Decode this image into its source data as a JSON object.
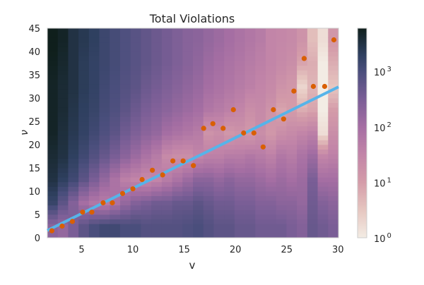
{
  "chart_data": {
    "type": "heatmap",
    "title": "Total Violations",
    "xlabel": "v",
    "ylabel": "ν",
    "xlim": [
      1.66,
      30.05
    ],
    "ylim": [
      0,
      45
    ],
    "xticks": [
      5,
      10,
      15,
      20,
      25,
      30
    ],
    "yticks": [
      0,
      5,
      10,
      15,
      20,
      25,
      30,
      35,
      40,
      45
    ],
    "grid": false,
    "colorbar": {
      "scale": "log",
      "range": [
        1,
        6000
      ],
      "tick_labels": [
        {
          "base": "10",
          "exp": "0",
          "value": 1
        },
        {
          "base": "10",
          "exp": "1",
          "value": 10
        },
        {
          "base": "10",
          "exp": "2",
          "value": 100
        },
        {
          "base": "10",
          "exp": "3",
          "value": 1000
        }
      ],
      "colormap_stops": [
        {
          "log10": 0,
          "color": "#f3ece4"
        },
        {
          "log10": 0.5,
          "color": "#e6c6c0"
        },
        {
          "log10": 1,
          "color": "#d49ca9"
        },
        {
          "log10": 1.5,
          "color": "#c285a8"
        },
        {
          "log10": 2,
          "color": "#a56ea3"
        },
        {
          "log10": 2.5,
          "color": "#7a5e96"
        },
        {
          "log10": 3,
          "color": "#4a4e7c"
        },
        {
          "log10": 3.3,
          "color": "#2f4060"
        },
        {
          "log10": 3.78,
          "color": "#0f1f1c"
        }
      ]
    },
    "heatmap": {
      "columns_v": [
        2,
        3,
        4,
        5,
        6,
        7,
        8,
        9,
        10,
        11,
        12,
        13,
        14,
        15,
        16,
        17,
        18,
        19,
        20,
        21,
        22,
        23,
        24,
        25,
        26,
        27,
        28,
        29
      ],
      "row_band_centers_nu": [
        2.5,
        7.5,
        12.5,
        17.5,
        22.5,
        27.5,
        32.5,
        37.5,
        42.5
      ],
      "log10_counts": [
        [
          2.3,
          3.2,
          3.5,
          3.6,
          3.7,
          3.7,
          3.7,
          3.75,
          3.8
        ],
        [
          2.2,
          2.8,
          3.3,
          3.5,
          3.55,
          3.6,
          3.6,
          3.65,
          3.7
        ],
        [
          2.5,
          2.4,
          3.1,
          3.3,
          3.4,
          3.45,
          3.5,
          3.5,
          3.5
        ],
        [
          2.8,
          2.0,
          2.8,
          3.1,
          3.25,
          3.3,
          3.35,
          3.35,
          3.4
        ],
        [
          3.0,
          1.8,
          2.5,
          2.9,
          3.1,
          3.2,
          3.25,
          3.25,
          3.3
        ],
        [
          3.1,
          1.7,
          2.2,
          2.7,
          2.95,
          3.05,
          3.1,
          3.15,
          3.15
        ],
        [
          3.1,
          1.9,
          1.9,
          2.5,
          2.8,
          2.95,
          3.0,
          3.05,
          3.05
        ],
        [
          3.0,
          2.2,
          1.6,
          2.3,
          2.6,
          2.8,
          2.9,
          2.95,
          2.95
        ],
        [
          3.0,
          2.4,
          1.5,
          2.1,
          2.45,
          2.65,
          2.8,
          2.85,
          2.85
        ],
        [
          2.9,
          2.5,
          1.4,
          1.9,
          2.3,
          2.5,
          2.65,
          2.75,
          2.75
        ],
        [
          2.9,
          2.6,
          1.5,
          1.7,
          2.2,
          2.4,
          2.55,
          2.65,
          2.65
        ],
        [
          2.9,
          2.6,
          1.7,
          1.4,
          2.0,
          2.3,
          2.45,
          2.55,
          2.55
        ],
        [
          2.9,
          2.7,
          1.9,
          1.3,
          1.9,
          2.2,
          2.35,
          2.45,
          2.45
        ],
        [
          2.95,
          2.7,
          2.1,
          1.3,
          1.8,
          2.1,
          2.25,
          2.35,
          2.35
        ],
        [
          3.0,
          2.8,
          2.3,
          1.5,
          1.7,
          2.0,
          2.15,
          2.25,
          2.3
        ],
        [
          2.9,
          2.7,
          2.3,
          1.6,
          1.2,
          1.8,
          2.0,
          2.1,
          2.2
        ],
        [
          2.8,
          2.6,
          2.2,
          1.6,
          1.3,
          1.7,
          1.9,
          2.0,
          2.1
        ],
        [
          2.8,
          2.6,
          2.3,
          1.7,
          1.1,
          1.6,
          1.8,
          1.9,
          2.0
        ],
        [
          2.7,
          2.5,
          2.2,
          1.7,
          1.2,
          1.5,
          1.7,
          1.8,
          1.9
        ],
        [
          2.7,
          2.5,
          2.2,
          1.8,
          1.1,
          1.3,
          1.6,
          1.7,
          1.8
        ],
        [
          2.6,
          2.4,
          2.1,
          1.7,
          1.3,
          1.4,
          1.5,
          1.6,
          1.7
        ],
        [
          2.6,
          2.4,
          2.0,
          1.6,
          1.1,
          1.2,
          1.4,
          1.5,
          1.5
        ],
        [
          2.6,
          2.3,
          2.1,
          1.8,
          1.3,
          0.9,
          1.2,
          1.4,
          1.45
        ],
        [
          2.5,
          2.3,
          2.0,
          1.7,
          1.4,
          1.0,
          1.1,
          1.3,
          1.4
        ],
        [
          2.4,
          2.2,
          2.1,
          1.9,
          1.5,
          0.8,
          0.3,
          0.9,
          1.2
        ],
        [
          2.7,
          2.6,
          2.5,
          2.1,
          1.6,
          0.9,
          0.7,
          0.8,
          0.6
        ],
        [
          2.6,
          2.4,
          2.0,
          1.5,
          0.2,
          0.0,
          0.0,
          0.0,
          0.2
        ],
        [
          2.5,
          2.3,
          2.0,
          1.6,
          1.3,
          1.0,
          0.5,
          0.8,
          1.1
        ]
      ]
    },
    "scatter": {
      "color": "#d95f02",
      "x": [
        2.1,
        3.1,
        4.1,
        5.1,
        6.0,
        7.1,
        8.0,
        9.0,
        10.0,
        10.9,
        11.9,
        12.9,
        13.9,
        14.9,
        15.9,
        16.9,
        17.8,
        18.8,
        19.8,
        20.8,
        21.8,
        22.7,
        23.7,
        24.7,
        25.7,
        26.7,
        27.6,
        28.7,
        29.6
      ],
      "y": [
        1.5,
        2.5,
        3.5,
        5.5,
        5.5,
        7.5,
        7.5,
        9.5,
        10.5,
        12.5,
        14.5,
        13.5,
        16.5,
        16.5,
        15.5,
        23.5,
        24.5,
        23.5,
        27.5,
        22.5,
        22.5,
        19.5,
        27.5,
        25.5,
        31.5,
        38.5,
        32.5,
        32.5,
        42.5
      ]
    },
    "fit_line": {
      "color": "#56b4e9",
      "x": [
        1.66,
        30.05
      ],
      "y": [
        1.56,
        32.4
      ]
    }
  }
}
